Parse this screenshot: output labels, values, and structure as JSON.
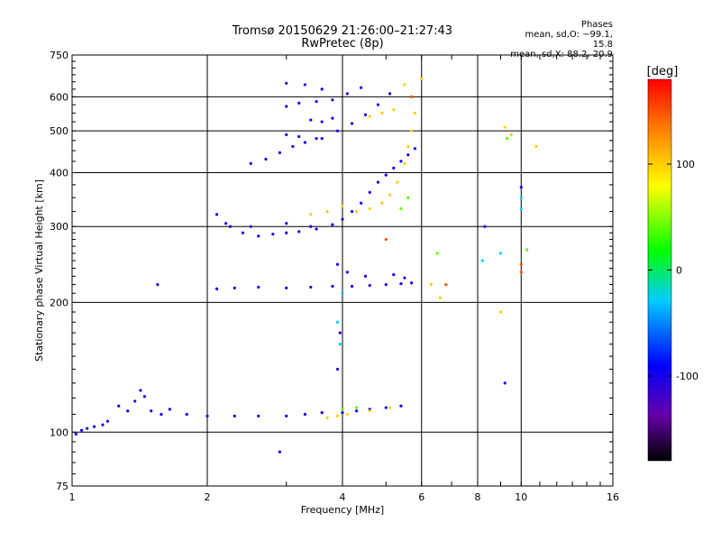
{
  "chart_data": {
    "type": "scatter",
    "title": "Tromsø 20150629 21:26:00–21:27:43",
    "subtitle": "RwPretec (8p)",
    "xlabel": "Frequency [MHz]",
    "ylabel": "Stationary phase Virtual Height [km]",
    "x_scale": "log",
    "y_scale": "log",
    "xlim": [
      1,
      16
    ],
    "ylim": [
      75,
      750
    ],
    "x_ticks": [
      1,
      2,
      4,
      6,
      8,
      10,
      16
    ],
    "y_ticks": [
      75,
      100,
      200,
      300,
      400,
      500,
      600,
      750
    ],
    "grid": true,
    "legend": {
      "title": "Phases",
      "lines": [
        "mean, sd,O: −99.1, 15.8",
        "mean, sd,X:  88.2, 20.9"
      ],
      "placement": "top-right"
    },
    "colorbar": {
      "label": "[deg]",
      "range": [
        -180,
        180
      ],
      "ticks": [
        100,
        0,
        -100
      ],
      "placement": "right"
    },
    "series": [
      {
        "mode": "O",
        "color_value": -100,
        "points": [
          [
            1.02,
            99
          ],
          [
            1.05,
            101
          ],
          [
            1.08,
            102
          ],
          [
            1.12,
            103
          ],
          [
            1.17,
            104
          ],
          [
            1.2,
            106
          ],
          [
            1.27,
            115
          ],
          [
            1.33,
            112
          ],
          [
            1.38,
            118
          ],
          [
            1.42,
            125
          ],
          [
            1.45,
            121
          ],
          [
            1.5,
            112
          ],
          [
            1.58,
            110
          ],
          [
            1.65,
            113
          ],
          [
            1.8,
            110
          ],
          [
            2.0,
            109
          ],
          [
            2.3,
            109
          ],
          [
            2.6,
            109
          ],
          [
            3.0,
            109
          ],
          [
            3.3,
            110
          ],
          [
            3.6,
            111
          ],
          [
            4.0,
            111
          ],
          [
            4.3,
            112
          ],
          [
            4.6,
            113
          ],
          [
            5.0,
            114
          ],
          [
            5.4,
            115
          ],
          [
            2.1,
            215
          ],
          [
            2.3,
            216
          ],
          [
            2.6,
            217
          ],
          [
            3.0,
            216
          ],
          [
            3.4,
            217
          ],
          [
            3.8,
            218
          ],
          [
            4.2,
            218
          ],
          [
            4.6,
            219
          ],
          [
            5.0,
            220
          ],
          [
            5.4,
            221
          ],
          [
            5.7,
            222
          ],
          [
            3.9,
            245
          ],
          [
            4.1,
            235
          ],
          [
            4.5,
            230
          ],
          [
            5.2,
            232
          ],
          [
            5.5,
            228
          ],
          [
            2.1,
            320
          ],
          [
            2.25,
            300
          ],
          [
            2.4,
            290
          ],
          [
            2.6,
            285
          ],
          [
            2.8,
            288
          ],
          [
            3.0,
            290
          ],
          [
            3.2,
            292
          ],
          [
            3.5,
            296
          ],
          [
            3.8,
            303
          ],
          [
            4.0,
            312
          ],
          [
            4.2,
            325
          ],
          [
            4.4,
            340
          ],
          [
            4.6,
            360
          ],
          [
            4.8,
            380
          ],
          [
            5.0,
            395
          ],
          [
            5.2,
            410
          ],
          [
            5.4,
            425
          ],
          [
            5.6,
            440
          ],
          [
            5.8,
            455
          ],
          [
            2.2,
            305
          ],
          [
            2.5,
            300
          ],
          [
            3.0,
            305
          ],
          [
            3.4,
            300
          ],
          [
            2.5,
            420
          ],
          [
            2.7,
            430
          ],
          [
            2.9,
            445
          ],
          [
            3.1,
            460
          ],
          [
            3.3,
            470
          ],
          [
            3.6,
            480
          ],
          [
            3.9,
            500
          ],
          [
            4.2,
            520
          ],
          [
            4.5,
            545
          ],
          [
            4.8,
            575
          ],
          [
            5.1,
            610
          ],
          [
            3.0,
            490
          ],
          [
            3.2,
            485
          ],
          [
            3.5,
            480
          ],
          [
            3.0,
            570
          ],
          [
            3.2,
            580
          ],
          [
            3.5,
            585
          ],
          [
            3.8,
            590
          ],
          [
            4.1,
            610
          ],
          [
            4.4,
            630
          ],
          [
            3.0,
            645
          ],
          [
            3.3,
            640
          ],
          [
            3.6,
            625
          ],
          [
            3.4,
            530
          ],
          [
            3.6,
            525
          ],
          [
            3.8,
            535
          ],
          [
            3.9,
            140
          ],
          [
            3.95,
            170
          ],
          [
            8.3,
            300
          ],
          [
            9.2,
            130
          ],
          [
            10.0,
            370
          ],
          [
            1.55,
            220
          ],
          [
            2.9,
            90
          ]
        ]
      },
      {
        "mode": "X",
        "color_value": 100,
        "points": [
          [
            3.7,
            108
          ],
          [
            3.9,
            109
          ],
          [
            4.1,
            110
          ],
          [
            4.6,
            112
          ],
          [
            5.1,
            114
          ],
          [
            3.4,
            320
          ],
          [
            3.7,
            325
          ],
          [
            4.0,
            335
          ],
          [
            4.3,
            325
          ],
          [
            4.6,
            330
          ],
          [
            4.9,
            340
          ],
          [
            5.1,
            355
          ],
          [
            5.3,
            380
          ],
          [
            5.5,
            420
          ],
          [
            5.6,
            460
          ],
          [
            5.7,
            500
          ],
          [
            5.8,
            550
          ],
          [
            5.7,
            600
          ],
          [
            5.5,
            640
          ],
          [
            4.6,
            540
          ],
          [
            4.9,
            550
          ],
          [
            5.2,
            560
          ],
          [
            6.3,
            220
          ],
          [
            9.2,
            510
          ],
          [
            9.5,
            490
          ],
          [
            10.8,
            460
          ],
          [
            6.0,
            660
          ],
          [
            6.6,
            205
          ],
          [
            9.0,
            190
          ]
        ]
      },
      {
        "mode": "X",
        "color_value": 40,
        "points": [
          [
            4.0,
            113
          ],
          [
            4.3,
            114
          ],
          [
            5.4,
            330
          ],
          [
            5.6,
            350
          ],
          [
            6.5,
            260
          ],
          [
            10.3,
            265
          ],
          [
            9.3,
            480
          ]
        ]
      },
      {
        "mode": "X",
        "color_value": 150,
        "points": [
          [
            10.0,
            235
          ],
          [
            10.0,
            245
          ],
          [
            6.8,
            220
          ],
          [
            5.0,
            280
          ],
          [
            5.7,
            600
          ]
        ]
      },
      {
        "mode": "O",
        "color_value": -30,
        "points": [
          [
            3.95,
            160
          ],
          [
            3.9,
            180
          ],
          [
            4.0,
            210
          ],
          [
            8.2,
            250
          ],
          [
            9.0,
            260
          ],
          [
            10.0,
            350
          ],
          [
            10.0,
            330
          ]
        ]
      }
    ]
  }
}
